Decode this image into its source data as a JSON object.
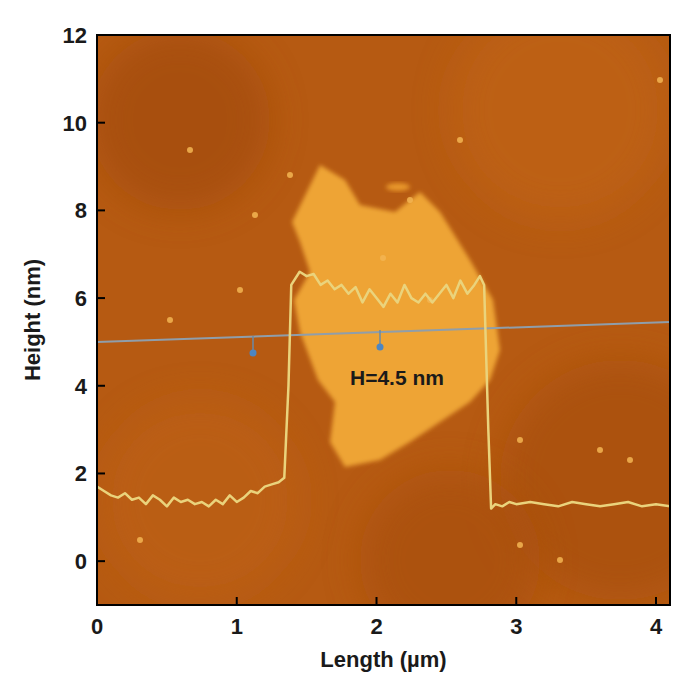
{
  "chart_data": {
    "type": "line",
    "x_label": "Length (µm)",
    "y_label": "Height (nm)",
    "annotation": "H=4.5 nm",
    "xlim": [
      0,
      4.1
    ],
    "ylim": [
      -1,
      12
    ],
    "xticks": [
      0,
      1,
      2,
      3,
      4
    ],
    "yticks": [
      0,
      2,
      4,
      6,
      8,
      10,
      12
    ],
    "grid": false,
    "color": "#ead37c",
    "x": [
      0,
      0.05,
      0.1,
      0.15,
      0.2,
      0.25,
      0.3,
      0.35,
      0.4,
      0.45,
      0.5,
      0.55,
      0.6,
      0.65,
      0.7,
      0.75,
      0.8,
      0.85,
      0.9,
      0.95,
      1.0,
      1.05,
      1.1,
      1.15,
      1.2,
      1.25,
      1.3,
      1.34,
      1.37,
      1.39,
      1.45,
      1.5,
      1.55,
      1.6,
      1.65,
      1.7,
      1.75,
      1.8,
      1.85,
      1.9,
      1.95,
      2.0,
      2.05,
      2.1,
      2.15,
      2.2,
      2.25,
      2.3,
      2.35,
      2.4,
      2.45,
      2.5,
      2.55,
      2.6,
      2.65,
      2.7,
      2.74,
      2.77,
      2.8,
      2.82,
      2.85,
      2.9,
      2.95,
      3.0,
      3.1,
      3.2,
      3.3,
      3.4,
      3.5,
      3.6,
      3.7,
      3.8,
      3.9,
      4.0,
      4.1
    ],
    "values": [
      1.7,
      1.6,
      1.5,
      1.45,
      1.55,
      1.4,
      1.45,
      1.3,
      1.5,
      1.4,
      1.25,
      1.45,
      1.35,
      1.4,
      1.3,
      1.35,
      1.25,
      1.4,
      1.3,
      1.5,
      1.35,
      1.45,
      1.6,
      1.55,
      1.7,
      1.75,
      1.8,
      1.9,
      4.0,
      6.3,
      6.6,
      6.5,
      6.55,
      6.3,
      6.4,
      6.2,
      6.3,
      6.1,
      6.25,
      5.9,
      6.2,
      6.0,
      5.8,
      6.1,
      5.9,
      6.3,
      6.0,
      5.9,
      6.1,
      5.9,
      6.1,
      6.3,
      6.0,
      6.4,
      6.1,
      6.3,
      6.5,
      6.3,
      3.0,
      1.2,
      1.3,
      1.25,
      1.35,
      1.3,
      1.35,
      1.3,
      1.25,
      1.35,
      1.3,
      1.25,
      1.3,
      1.35,
      1.25,
      1.3,
      1.25
    ]
  }
}
